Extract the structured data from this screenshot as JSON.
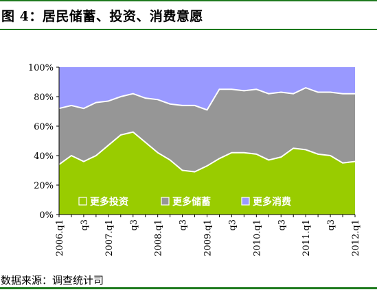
{
  "figure_title": "图 4：居民储蓄、投资、消费意愿",
  "source_note": "数据来源：调查统计司",
  "colors": {
    "investment": "#99cc00",
    "savings": "#969696",
    "consumption": "#9999ff",
    "rule": "#1e7a1e"
  },
  "chart_data": {
    "type": "area",
    "stacked": true,
    "y_ticks": [
      "0%",
      "20%",
      "40%",
      "60%",
      "80%",
      "100%"
    ],
    "ylim": [
      0,
      100
    ],
    "x_tick_labels": [
      "2006.q1",
      "q3",
      "2007.q1",
      "q3",
      "2008.q1",
      "q3",
      "2009.q1",
      "q3",
      "2010.q1",
      "q3",
      "2011.q1",
      "q3",
      "2012.q1"
    ],
    "x_tick_indices": [
      0,
      2,
      4,
      6,
      8,
      10,
      12,
      14,
      16,
      18,
      20,
      22,
      24
    ],
    "quarters": [
      "2006.q1",
      "2006.q2",
      "2006.q3",
      "2006.q4",
      "2007.q1",
      "2007.q2",
      "2007.q3",
      "2007.q4",
      "2008.q1",
      "2008.q2",
      "2008.q3",
      "2008.q4",
      "2009.q1",
      "2009.q2",
      "2009.q3",
      "2009.q4",
      "2010.q1",
      "2010.q2",
      "2010.q3",
      "2010.q4",
      "2011.q1",
      "2011.q2",
      "2011.q3",
      "2011.q4",
      "2012.q1"
    ],
    "legend_position": "bottom, inside plot",
    "series": [
      {
        "name": "更多投资",
        "values": [
          34,
          40,
          36,
          40,
          47,
          54,
          56,
          49,
          42,
          37,
          30,
          29,
          33,
          38,
          42,
          42,
          41,
          37,
          39,
          45,
          44,
          41,
          40,
          35,
          36
        ]
      },
      {
        "name": "更多储蓄",
        "values": [
          38,
          34,
          36,
          36,
          30,
          26,
          26,
          30,
          36,
          38,
          44,
          45,
          38,
          47,
          43,
          42,
          44,
          45,
          44,
          37,
          42,
          42,
          43,
          47,
          46
        ]
      },
      {
        "name": "更多消费",
        "values": [
          28,
          26,
          28,
          24,
          23,
          20,
          18,
          21,
          22,
          25,
          26,
          26,
          29,
          15,
          15,
          16,
          15,
          18,
          17,
          18,
          14,
          17,
          17,
          18,
          18
        ]
      }
    ]
  }
}
